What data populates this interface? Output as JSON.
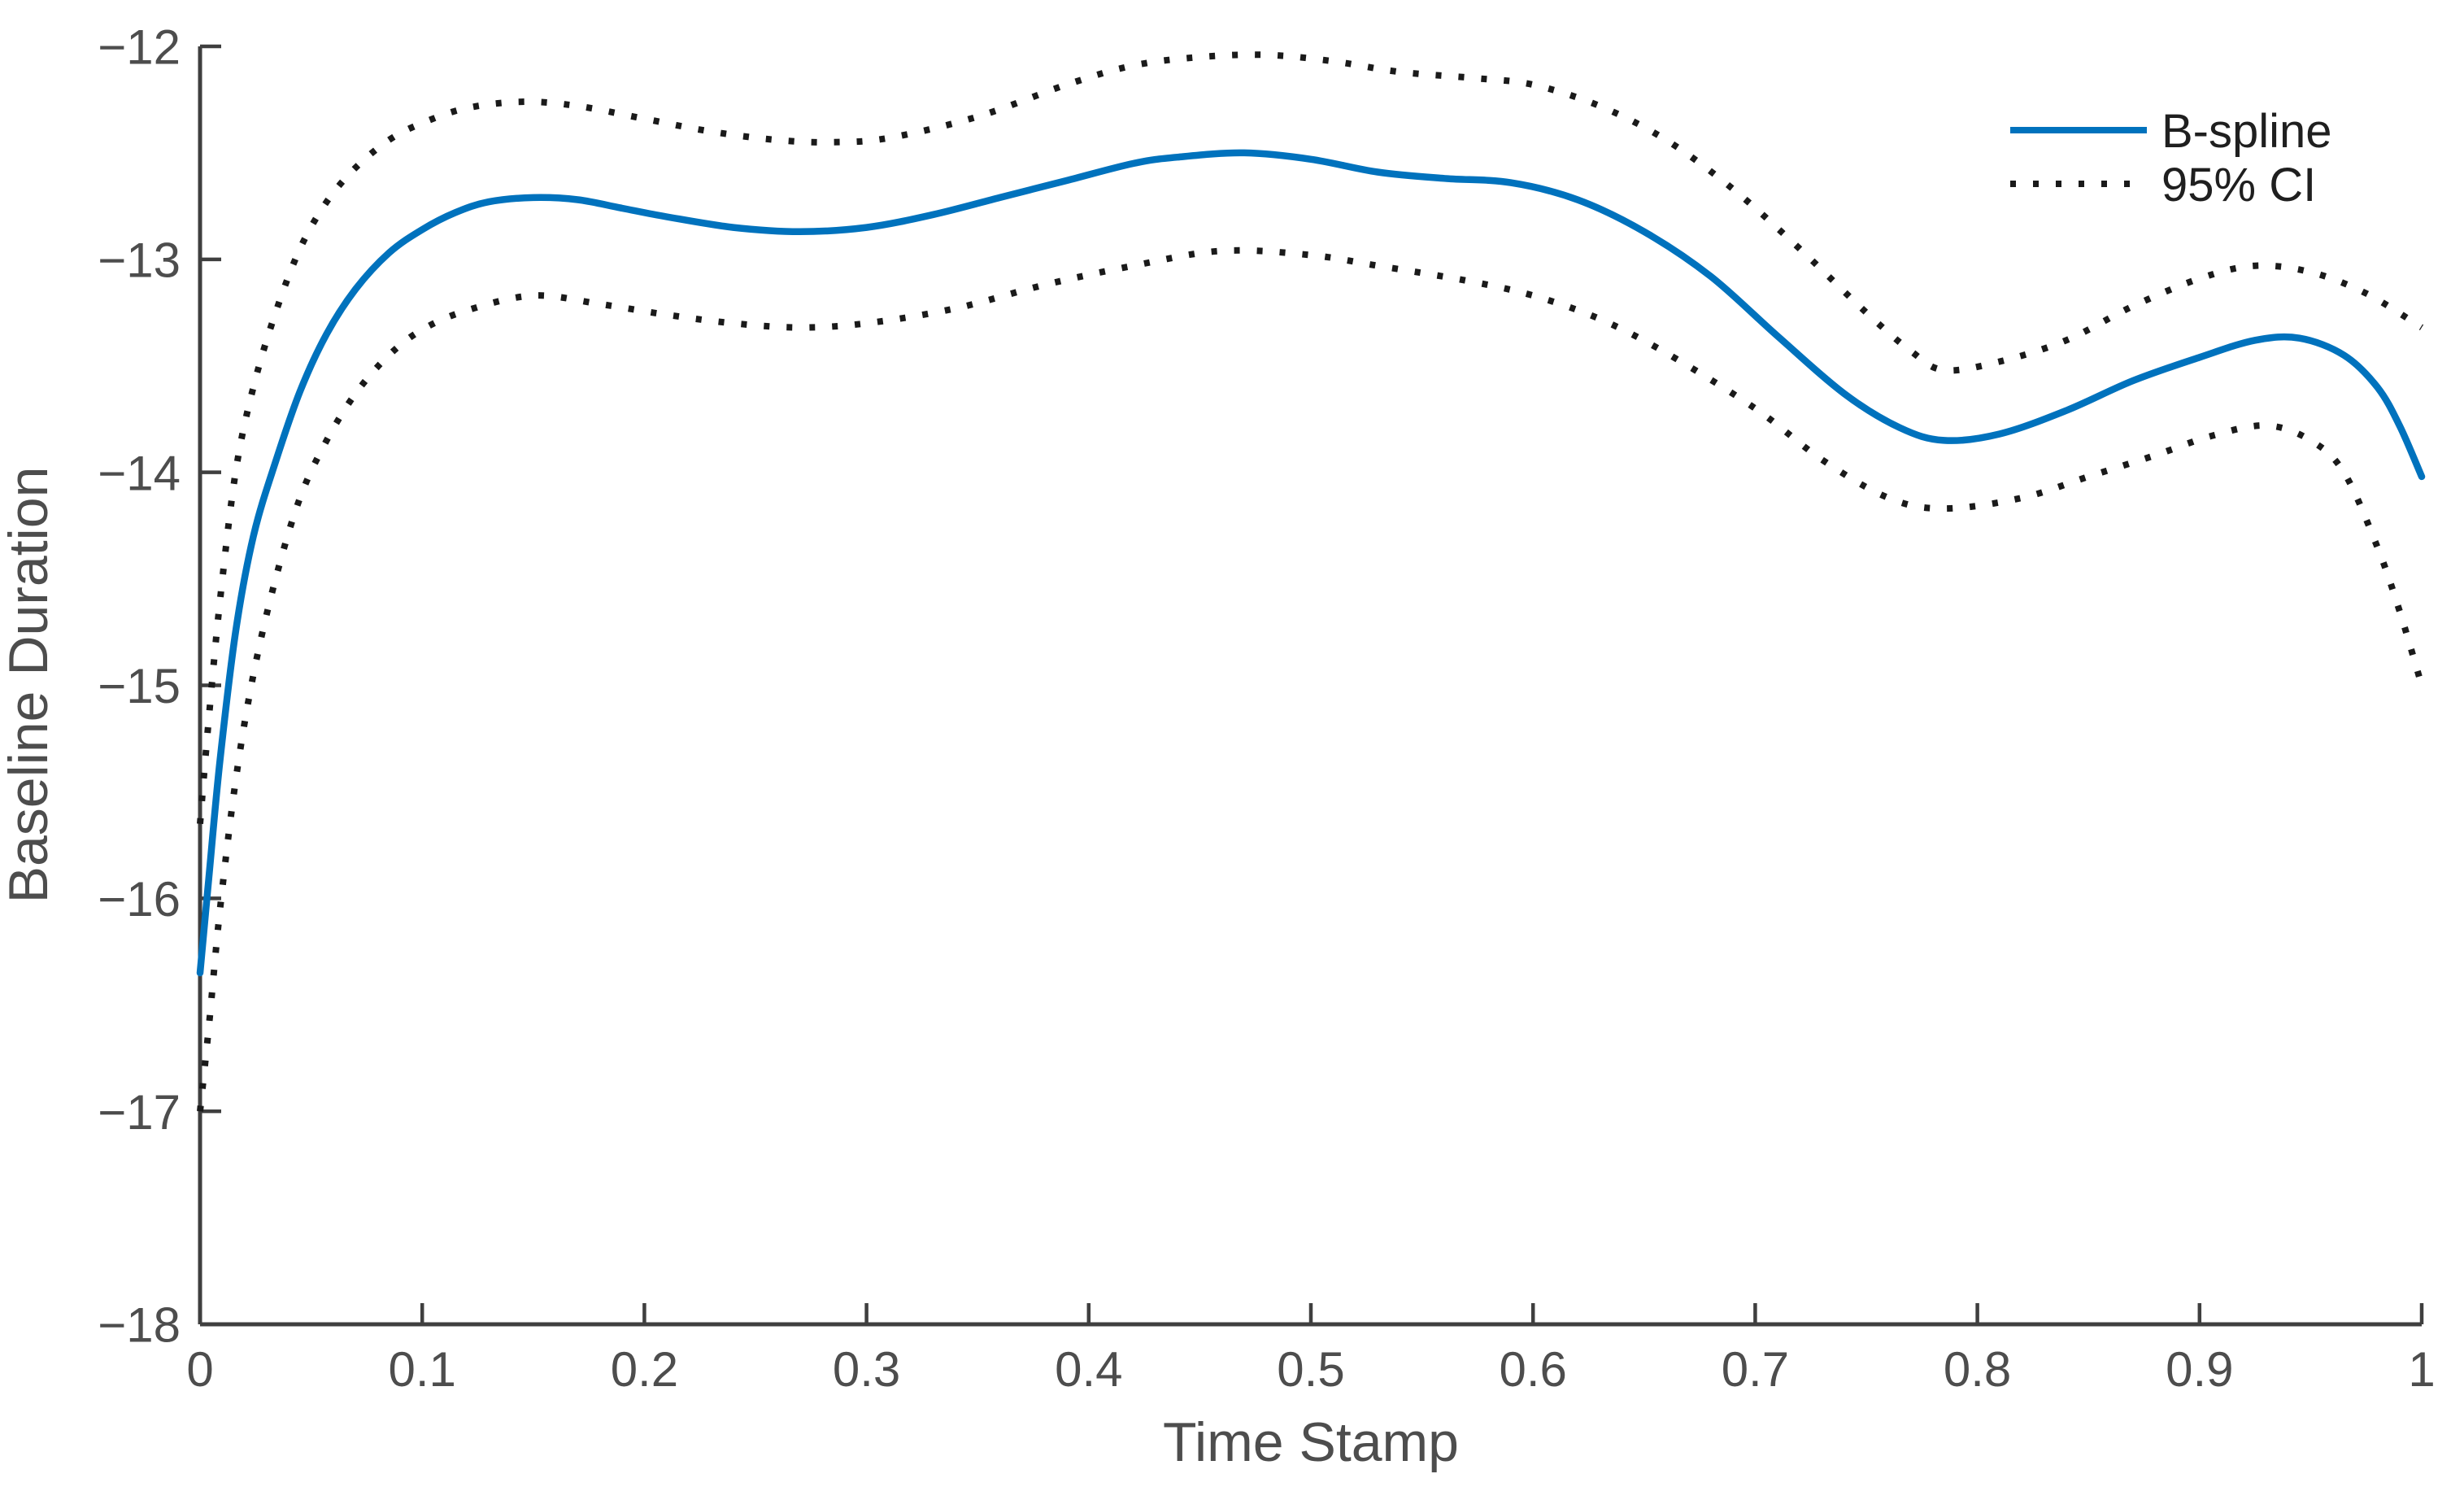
{
  "chart_data": {
    "type": "line",
    "title": "",
    "xlabel": "Time Stamp",
    "ylabel": "Baseline Duration",
    "xlim": [
      0,
      1
    ],
    "ylim": [
      -18,
      -12
    ],
    "grid": false,
    "box": false,
    "legend_position": "top-right",
    "x_ticks": {
      "values": [
        0,
        0.1,
        0.2,
        0.3,
        0.4,
        0.5,
        0.6,
        0.7,
        0.8,
        0.9,
        1
      ],
      "labels": [
        "0",
        "0.1",
        "0.2",
        "0.3",
        "0.4",
        "0.5",
        "0.6",
        "0.7",
        "0.8",
        "0.9",
        "1"
      ]
    },
    "y_ticks": {
      "values": [
        -18,
        -17,
        -16,
        -15,
        -14,
        -13,
        -12
      ],
      "labels": [
        "−18",
        "−17",
        "−16",
        "−15",
        "−14",
        "−13",
        "−12"
      ]
    },
    "legend": [
      {
        "label": "B-spline"
      },
      {
        "label": "95% CI"
      }
    ],
    "series": [
      {
        "name": "B-spline",
        "line_style": "solid",
        "color": "#0072BD",
        "x": [
          0,
          0.004,
          0.009,
          0.016,
          0.024,
          0.034,
          0.045,
          0.057,
          0.07,
          0.085,
          0.1,
          0.115,
          0.13,
          0.15,
          0.17,
          0.19,
          0.21,
          0.24,
          0.27,
          0.3,
          0.33,
          0.36,
          0.39,
          0.42,
          0.44,
          0.47,
          0.5,
          0.53,
          0.56,
          0.59,
          0.62,
          0.65,
          0.68,
          0.71,
          0.74,
          0.765,
          0.785,
          0.81,
          0.84,
          0.87,
          0.9,
          0.925,
          0.945,
          0.965,
          0.98,
          0.99,
          1.0
        ],
        "y": [
          -16.35,
          -15.9,
          -15.35,
          -14.75,
          -14.3,
          -13.95,
          -13.62,
          -13.35,
          -13.14,
          -12.97,
          -12.86,
          -12.78,
          -12.73,
          -12.71,
          -12.72,
          -12.76,
          -12.8,
          -12.85,
          -12.87,
          -12.85,
          -12.79,
          -12.71,
          -12.63,
          -12.55,
          -12.52,
          -12.5,
          -12.53,
          -12.59,
          -12.62,
          -12.64,
          -12.72,
          -12.87,
          -13.08,
          -13.36,
          -13.63,
          -13.79,
          -13.85,
          -13.82,
          -13.71,
          -13.57,
          -13.46,
          -13.38,
          -13.37,
          -13.45,
          -13.6,
          -13.78,
          -14.02
        ]
      },
      {
        "name": "95% CI upper",
        "line_style": "dotted",
        "color": "#1a1a1a",
        "x": [
          0,
          0.004,
          0.009,
          0.016,
          0.024,
          0.034,
          0.045,
          0.057,
          0.07,
          0.085,
          0.1,
          0.12,
          0.145,
          0.17,
          0.2,
          0.23,
          0.26,
          0.285,
          0.31,
          0.35,
          0.39,
          0.42,
          0.45,
          0.48,
          0.51,
          0.54,
          0.575,
          0.6,
          0.63,
          0.66,
          0.69,
          0.72,
          0.75,
          0.77,
          0.785,
          0.81,
          0.84,
          0.87,
          0.9,
          0.925,
          0.95,
          0.975,
          1.0
        ],
        "y": [
          -15.65,
          -15.15,
          -14.6,
          -14.0,
          -13.6,
          -13.25,
          -12.95,
          -12.73,
          -12.57,
          -12.44,
          -12.36,
          -12.29,
          -12.26,
          -12.28,
          -12.34,
          -12.4,
          -12.44,
          -12.45,
          -12.43,
          -12.33,
          -12.18,
          -12.09,
          -12.05,
          -12.04,
          -12.07,
          -12.12,
          -12.15,
          -12.18,
          -12.28,
          -12.44,
          -12.67,
          -12.95,
          -13.25,
          -13.43,
          -13.52,
          -13.48,
          -13.38,
          -13.22,
          -13.09,
          -13.03,
          -13.06,
          -13.16,
          -13.32
        ]
      },
      {
        "name": "95% CI lower",
        "line_style": "dotted",
        "color": "#1a1a1a",
        "x": [
          0,
          0.004,
          0.009,
          0.016,
          0.024,
          0.034,
          0.045,
          0.057,
          0.07,
          0.085,
          0.1,
          0.12,
          0.15,
          0.18,
          0.21,
          0.24,
          0.27,
          0.3,
          0.34,
          0.38,
          0.42,
          0.46,
          0.5,
          0.53,
          0.57,
          0.6,
          0.63,
          0.66,
          0.7,
          0.73,
          0.76,
          0.785,
          0.82,
          0.85,
          0.88,
          0.905,
          0.93,
          0.95,
          0.965,
          0.98,
          0.99,
          1.0
        ],
        "y": [
          -17.0,
          -16.6,
          -16.05,
          -15.45,
          -14.95,
          -14.5,
          -14.12,
          -13.85,
          -13.63,
          -13.45,
          -13.33,
          -13.24,
          -13.17,
          -13.21,
          -13.26,
          -13.3,
          -13.32,
          -13.3,
          -13.23,
          -13.12,
          -13.03,
          -12.96,
          -12.98,
          -13.03,
          -13.1,
          -13.17,
          -13.28,
          -13.44,
          -13.7,
          -13.94,
          -14.12,
          -14.17,
          -14.12,
          -14.02,
          -13.92,
          -13.83,
          -13.78,
          -13.85,
          -14.0,
          -14.35,
          -14.65,
          -15.0
        ]
      }
    ]
  },
  "colors": {
    "background": "#ffffff",
    "axis": "#3f3f3f",
    "tick_text": "#4d4d4d",
    "legend_text": "#1f1f1f",
    "accent_blue": "#0072BD",
    "ci_black": "#1a1a1a"
  }
}
